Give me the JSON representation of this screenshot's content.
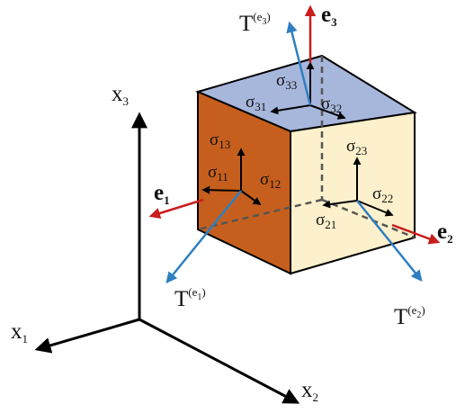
{
  "colors": {
    "top_face": "#a7b6db",
    "left_face": "#c65f1d",
    "right_face": "#fdf0cc",
    "outline": "#000000",
    "traction_vector": "#2e7fc1",
    "basis_vector": "#c81e1e",
    "axis": "#000000",
    "hidden_edge": "#555555"
  },
  "labels": {
    "x1": {
      "base": "x",
      "sub": "1"
    },
    "x2": {
      "base": "x",
      "sub": "2"
    },
    "x3": {
      "base": "x",
      "sub": "3"
    },
    "e1": {
      "base": "e",
      "sub": "1"
    },
    "e2": {
      "base": "e",
      "sub": "2"
    },
    "e3": {
      "base": "e",
      "sub": "3"
    },
    "T_e1": {
      "base": "T",
      "sup": "(e",
      "supsub": "1",
      "close": ")"
    },
    "T_e2": {
      "base": "T",
      "sup": "(e",
      "supsub": "2",
      "close": ")"
    },
    "T_e3": {
      "base": "T",
      "sup": "(e",
      "supsub": "3",
      "close": ")"
    },
    "s11": {
      "base": "σ",
      "sub": "11"
    },
    "s12": {
      "base": "σ",
      "sub": "12"
    },
    "s13": {
      "base": "σ",
      "sub": "13"
    },
    "s21": {
      "base": "σ",
      "sub": "21"
    },
    "s22": {
      "base": "σ",
      "sub": "22"
    },
    "s23": {
      "base": "σ",
      "sub": "23"
    },
    "s31": {
      "base": "σ",
      "sub": "31"
    },
    "s32": {
      "base": "σ",
      "sub": "32"
    },
    "s33": {
      "base": "σ",
      "sub": "33"
    }
  }
}
